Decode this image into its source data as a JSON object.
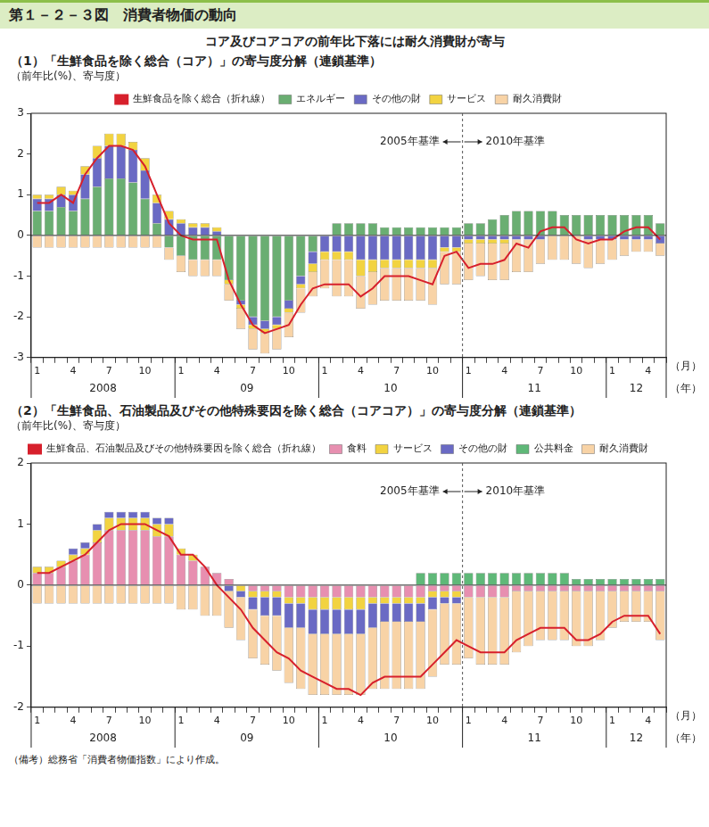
{
  "figure_title": "第１－２－３図　消費者物価の動向",
  "subtitle": "コア及びコアコアの前年比下落には耐久消費財が寄与",
  "note": "（備考）総務省「消費者物価指数」により作成。",
  "chart_data": [
    {
      "type": "bar",
      "title": "（1）「生鮮食品を除く総合（コア）」の寄与度分解（連鎖基準）",
      "y_label": "（前年比(%)、寄与度）",
      "x_label": "（月）",
      "x_group_label": "（年）",
      "categories": [
        "1",
        null,
        null,
        "4",
        null,
        null,
        "7",
        null,
        null,
        "10",
        null,
        null,
        "1",
        null,
        null,
        "4",
        null,
        null,
        "7",
        null,
        null,
        "10",
        null,
        null,
        "1",
        null,
        null,
        "4",
        null,
        null,
        "7",
        null,
        null,
        "10",
        null,
        null,
        "1",
        null,
        null,
        "4",
        null,
        null,
        "7",
        null,
        null,
        "10",
        null,
        null,
        "1",
        null,
        null,
        "4",
        null
      ],
      "year_labels": [
        {
          "label": "2008",
          "from": 0,
          "to": 11
        },
        {
          "label": "09",
          "from": 12,
          "to": 23
        },
        {
          "label": "10",
          "from": 24,
          "to": 35
        },
        {
          "label": "11",
          "from": 36,
          "to": 47
        },
        {
          "label": "12",
          "from": 48,
          "to": 52
        }
      ],
      "base_change": {
        "year": "11",
        "before": "2005年基準",
        "after": "2010年基準"
      },
      "ylim": [
        -3,
        3
      ],
      "yticks": [
        -3,
        -2,
        -1,
        0,
        1,
        2,
        3
      ],
      "grid": false,
      "stacked": true,
      "legend": "top",
      "series": [
        {
          "name": "生鮮食品を除く総合（折れ線）",
          "type": "line",
          "color": "#d7202c",
          "values": [
            0.8,
            0.8,
            1.0,
            0.8,
            1.5,
            1.9,
            2.2,
            2.2,
            2.1,
            1.7,
            1.0,
            0.3,
            0.0,
            -0.1,
            -0.1,
            -0.1,
            -1.1,
            -1.7,
            -2.2,
            -2.4,
            -2.3,
            -2.2,
            -1.7,
            -1.3,
            -1.2,
            -1.2,
            -1.2,
            -1.5,
            -1.3,
            -1.0,
            -1.0,
            -1.0,
            -1.1,
            -1.2,
            -0.5,
            -0.4,
            -0.8,
            -0.7,
            -0.7,
            -0.6,
            -0.2,
            -0.3,
            0.1,
            0.2,
            0.2,
            -0.1,
            -0.2,
            -0.1,
            -0.1,
            0.1,
            0.2,
            0.2,
            -0.1
          ]
        },
        {
          "name": "エネルギー",
          "type": "bar",
          "color": "#6aae72",
          "values": [
            0.6,
            0.6,
            0.7,
            0.6,
            0.9,
            1.2,
            1.4,
            1.4,
            1.3,
            0.9,
            0.3,
            -0.3,
            -0.5,
            -0.6,
            -0.6,
            -0.6,
            -1.1,
            -1.6,
            -2.0,
            -2.1,
            -2.0,
            -1.6,
            -1.0,
            -0.4,
            0.0,
            0.3,
            0.3,
            0.3,
            0.3,
            0.2,
            0.2,
            0.2,
            0.2,
            0.2,
            0.2,
            0.2,
            0.3,
            0.3,
            0.4,
            0.5,
            0.6,
            0.6,
            0.6,
            0.6,
            0.5,
            0.5,
            0.5,
            0.5,
            0.5,
            0.5,
            0.5,
            0.5,
            0.3
          ]
        },
        {
          "name": "その他の財",
          "type": "bar",
          "color": "#6a6ac4",
          "values": [
            0.3,
            0.3,
            0.3,
            0.4,
            0.6,
            0.7,
            0.8,
            0.8,
            0.8,
            0.7,
            0.5,
            0.4,
            0.3,
            0.2,
            0.2,
            0.1,
            0.0,
            -0.1,
            -0.2,
            -0.2,
            -0.2,
            -0.2,
            -0.2,
            -0.3,
            -0.4,
            -0.4,
            -0.4,
            -0.6,
            -0.6,
            -0.6,
            -0.6,
            -0.6,
            -0.6,
            -0.6,
            -0.3,
            -0.3,
            -0.1,
            -0.1,
            -0.1,
            -0.1,
            -0.1,
            -0.1,
            -0.1,
            0.0,
            0.0,
            0.0,
            -0.1,
            -0.1,
            -0.1,
            -0.1,
            -0.1,
            -0.1,
            -0.2
          ]
        },
        {
          "name": "サービス",
          "type": "bar",
          "color": "#f2d341",
          "values": [
            0.1,
            0.1,
            0.2,
            0.1,
            0.2,
            0.3,
            0.3,
            0.3,
            0.2,
            0.3,
            0.2,
            0.2,
            0.1,
            0.1,
            0.1,
            0.1,
            -0.1,
            -0.1,
            -0.1,
            -0.1,
            -0.1,
            -0.1,
            -0.1,
            -0.2,
            -0.2,
            -0.2,
            -0.2,
            -0.4,
            -0.3,
            -0.2,
            -0.2,
            -0.2,
            -0.2,
            -0.2,
            -0.1,
            -0.1,
            -0.1,
            -0.1,
            -0.1,
            -0.1,
            0.0,
            0.0,
            0.0,
            0.0,
            0.0,
            0.0,
            0.0,
            0.0,
            0.0,
            0.0,
            0.0,
            0.0,
            0.0
          ]
        },
        {
          "name": "耐久消費財",
          "type": "bar",
          "color": "#f8d3a6",
          "values": [
            -0.3,
            -0.3,
            -0.3,
            -0.3,
            -0.3,
            -0.3,
            -0.3,
            -0.3,
            -0.3,
            -0.3,
            -0.3,
            -0.3,
            -0.4,
            -0.4,
            -0.4,
            -0.4,
            -0.4,
            -0.5,
            -0.5,
            -0.5,
            -0.5,
            -0.6,
            -0.6,
            -0.6,
            -0.7,
            -0.9,
            -0.9,
            -0.8,
            -0.8,
            -0.8,
            -0.8,
            -0.8,
            -0.8,
            -0.9,
            -0.8,
            -0.8,
            -0.9,
            -0.8,
            -0.9,
            -0.9,
            -0.8,
            -0.8,
            -0.6,
            -0.6,
            -0.6,
            -0.7,
            -0.7,
            -0.6,
            -0.5,
            -0.4,
            -0.3,
            -0.3,
            -0.3
          ]
        }
      ]
    },
    {
      "type": "bar",
      "title": "（2）「生鮮食品、石油製品及びその他特殊要因を除く総合（コアコア）」の寄与度分解（連鎖基準）",
      "y_label": "（前年比(%)、寄与度）",
      "x_label": "（月）",
      "x_group_label": "（年）",
      "categories": [
        "1",
        null,
        null,
        "4",
        null,
        null,
        "7",
        null,
        null,
        "10",
        null,
        null,
        "1",
        null,
        null,
        "4",
        null,
        null,
        "7",
        null,
        null,
        "10",
        null,
        null,
        "1",
        null,
        null,
        "4",
        null,
        null,
        "7",
        null,
        null,
        "10",
        null,
        null,
        "1",
        null,
        null,
        "4",
        null,
        null,
        "7",
        null,
        null,
        "10",
        null,
        null,
        "1",
        null,
        null,
        "4",
        null
      ],
      "year_labels": [
        {
          "label": "2008",
          "from": 0,
          "to": 11
        },
        {
          "label": "09",
          "from": 12,
          "to": 23
        },
        {
          "label": "10",
          "from": 24,
          "to": 35
        },
        {
          "label": "11",
          "from": 36,
          "to": 47
        },
        {
          "label": "12",
          "from": 48,
          "to": 52
        }
      ],
      "base_change": {
        "year": "11",
        "before": "2005年基準",
        "after": "2010年基準"
      },
      "ylim": [
        -2,
        2
      ],
      "yticks": [
        -2,
        -1,
        0,
        1,
        2
      ],
      "grid": false,
      "stacked": true,
      "legend": "top",
      "series": [
        {
          "name": "生鮮食品、石油製品及びその他特殊要因を除く総合（折れ線）",
          "type": "line",
          "color": "#d7202c",
          "values": [
            0.2,
            0.2,
            0.3,
            0.4,
            0.5,
            0.7,
            0.9,
            1.0,
            1.0,
            1.0,
            0.9,
            0.8,
            0.5,
            0.5,
            0.3,
            0.0,
            -0.2,
            -0.4,
            -0.7,
            -0.9,
            -1.1,
            -1.2,
            -1.4,
            -1.5,
            -1.6,
            -1.7,
            -1.7,
            -1.8,
            -1.6,
            -1.5,
            -1.5,
            -1.5,
            -1.5,
            -1.3,
            -1.1,
            -0.9,
            -1.0,
            -1.1,
            -1.1,
            -1.1,
            -0.9,
            -0.8,
            -0.7,
            -0.7,
            -0.7,
            -0.9,
            -0.9,
            -0.8,
            -0.6,
            -0.5,
            -0.5,
            -0.5,
            -0.8
          ]
        },
        {
          "name": "食料",
          "type": "bar",
          "color": "#e78fb0",
          "values": [
            0.2,
            0.2,
            0.3,
            0.4,
            0.5,
            0.7,
            0.9,
            0.9,
            0.9,
            0.9,
            0.8,
            0.8,
            0.5,
            0.4,
            0.3,
            0.2,
            0.1,
            0.0,
            -0.1,
            -0.1,
            -0.1,
            -0.2,
            -0.2,
            -0.2,
            -0.2,
            -0.2,
            -0.2,
            -0.2,
            -0.2,
            -0.2,
            -0.2,
            -0.2,
            -0.2,
            -0.1,
            -0.1,
            -0.1,
            -0.2,
            -0.2,
            -0.2,
            -0.2,
            -0.1,
            -0.1,
            -0.1,
            -0.1,
            -0.1,
            -0.1,
            -0.1,
            -0.1,
            -0.1,
            -0.1,
            -0.1,
            -0.1,
            -0.1
          ]
        },
        {
          "name": "サービス",
          "type": "bar",
          "color": "#f2d341",
          "values": [
            0.1,
            0.1,
            0.1,
            0.1,
            0.1,
            0.2,
            0.2,
            0.2,
            0.2,
            0.2,
            0.2,
            0.2,
            0.1,
            0.1,
            0.0,
            0.0,
            0.0,
            -0.1,
            -0.1,
            -0.1,
            -0.1,
            -0.1,
            -0.1,
            -0.2,
            -0.2,
            -0.2,
            -0.2,
            -0.2,
            -0.1,
            -0.1,
            -0.1,
            -0.1,
            -0.1,
            -0.1,
            -0.1,
            -0.1,
            0.0,
            0.0,
            0.0,
            0.0,
            0.0,
            0.0,
            0.0,
            0.0,
            0.0,
            0.0,
            0.0,
            0.0,
            0.0,
            0.0,
            0.0,
            0.0,
            0.0
          ]
        },
        {
          "name": "その他の財",
          "type": "bar",
          "color": "#6a6ac4",
          "values": [
            0.0,
            0.0,
            0.0,
            0.1,
            0.1,
            0.1,
            0.1,
            0.1,
            0.1,
            0.1,
            0.1,
            0.1,
            0.0,
            0.0,
            0.0,
            0.0,
            -0.1,
            -0.1,
            -0.2,
            -0.3,
            -0.3,
            -0.4,
            -0.4,
            -0.4,
            -0.4,
            -0.4,
            -0.4,
            -0.4,
            -0.4,
            -0.3,
            -0.3,
            -0.3,
            -0.3,
            -0.2,
            -0.1,
            -0.1,
            0.0,
            0.0,
            0.0,
            0.0,
            0.0,
            0.0,
            0.0,
            0.0,
            0.0,
            0.0,
            0.0,
            0.0,
            0.0,
            0.0,
            0.0,
            0.0,
            0.0
          ]
        },
        {
          "name": "公共料金",
          "type": "bar",
          "color": "#5fb878",
          "values": [
            0.0,
            0.0,
            0.0,
            0.0,
            0.0,
            0.0,
            0.0,
            0.0,
            0.0,
            0.0,
            0.0,
            0.0,
            0.0,
            0.0,
            0.0,
            0.0,
            0.0,
            0.0,
            0.0,
            0.0,
            0.0,
            0.0,
            0.0,
            0.0,
            0.0,
            0.0,
            0.0,
            0.0,
            0.0,
            0.0,
            0.0,
            0.0,
            0.2,
            0.2,
            0.2,
            0.2,
            0.2,
            0.2,
            0.2,
            0.2,
            0.2,
            0.2,
            0.2,
            0.2,
            0.2,
            0.1,
            0.1,
            0.1,
            0.1,
            0.1,
            0.1,
            0.1,
            0.1
          ]
        },
        {
          "name": "耐久消費財",
          "type": "bar",
          "color": "#f8d3a6",
          "values": [
            -0.3,
            -0.3,
            -0.3,
            -0.3,
            -0.3,
            -0.3,
            -0.3,
            -0.3,
            -0.3,
            -0.3,
            -0.3,
            -0.3,
            -0.4,
            -0.4,
            -0.5,
            -0.5,
            -0.6,
            -0.7,
            -0.8,
            -0.8,
            -0.9,
            -0.9,
            -1.0,
            -1.0,
            -1.0,
            -1.0,
            -1.0,
            -1.0,
            -1.0,
            -1.1,
            -1.1,
            -1.1,
            -1.1,
            -1.1,
            -1.0,
            -1.0,
            -1.0,
            -1.1,
            -1.1,
            -1.1,
            -1.0,
            -0.9,
            -0.8,
            -0.8,
            -0.8,
            -0.9,
            -0.9,
            -0.8,
            -0.6,
            -0.5,
            -0.5,
            -0.5,
            -0.8
          ]
        }
      ]
    }
  ]
}
